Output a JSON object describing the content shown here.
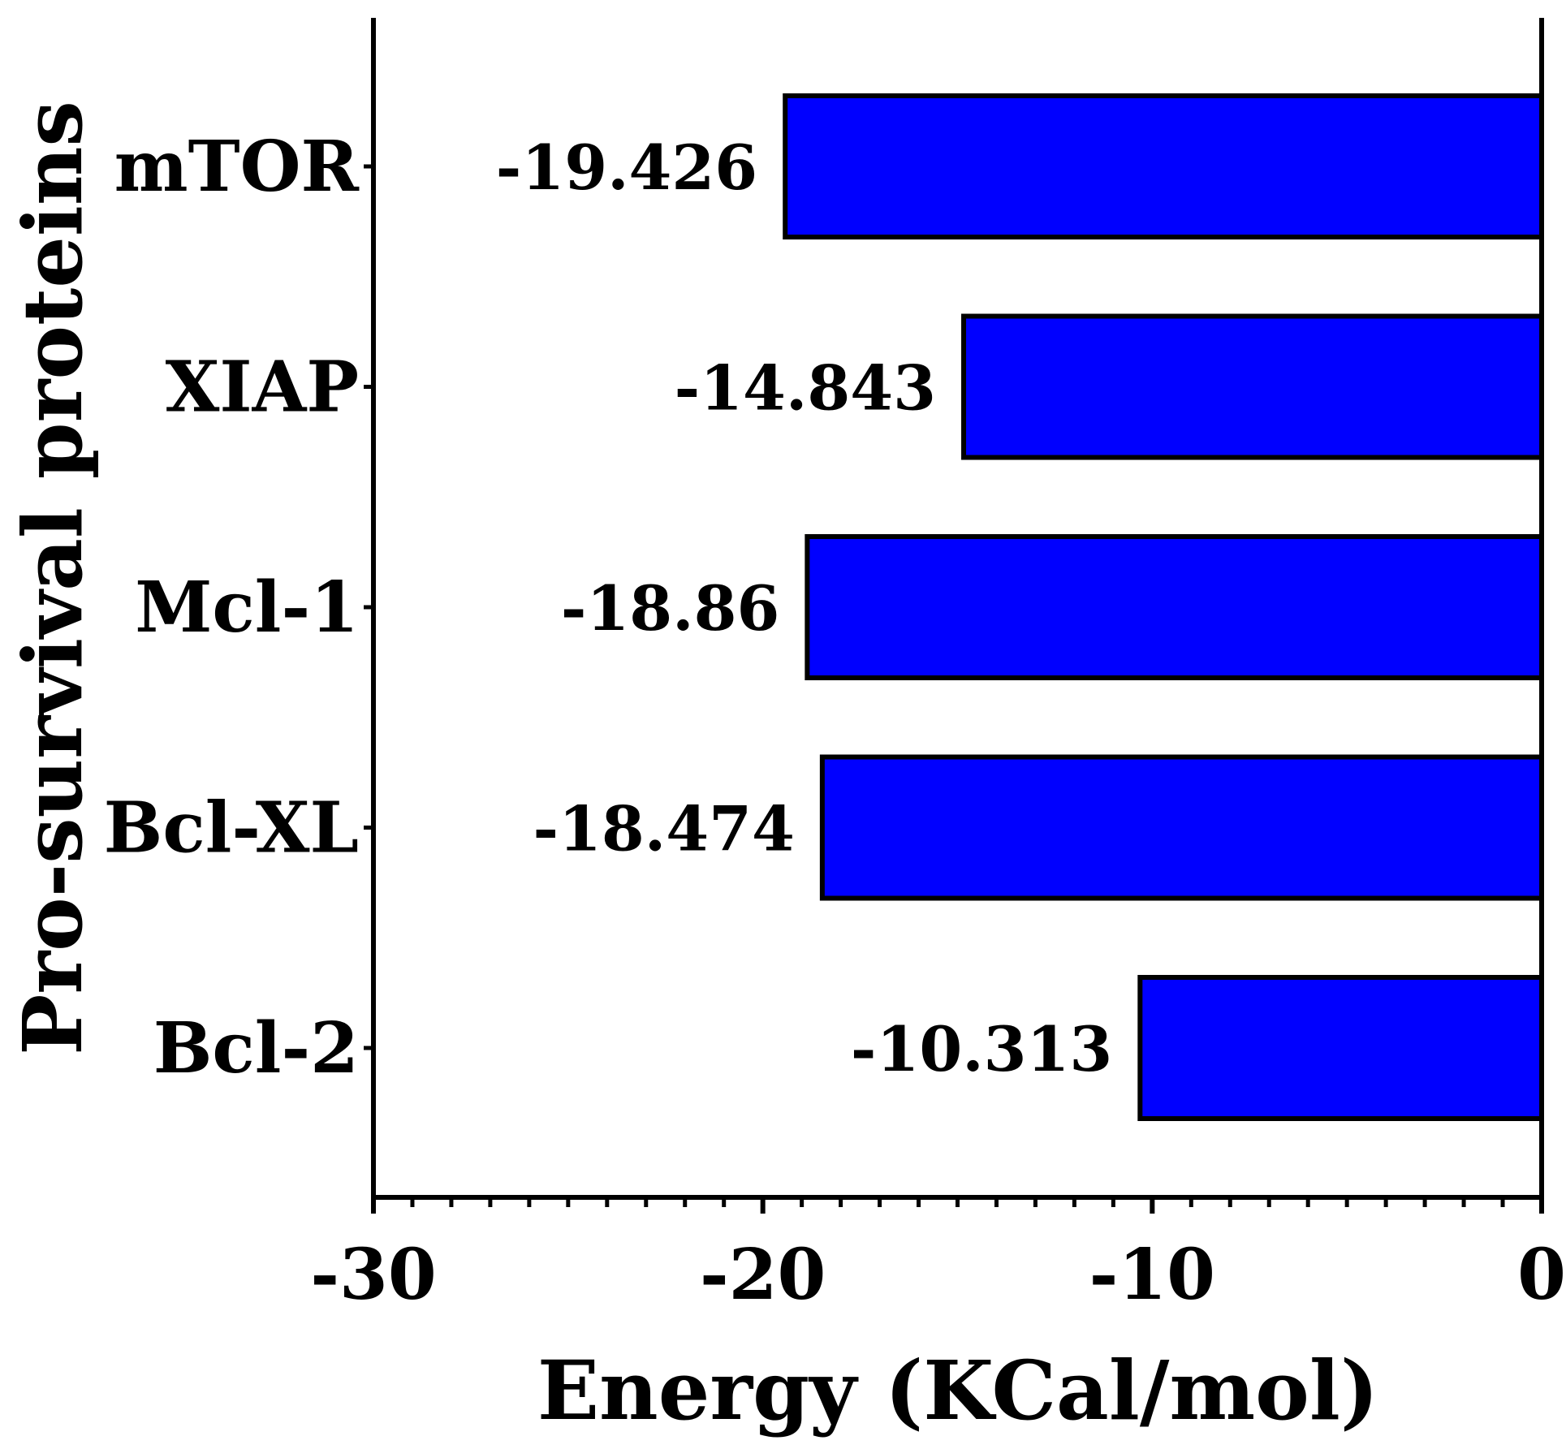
{
  "chart_data": {
    "type": "bar",
    "orientation": "horizontal",
    "categories": [
      "mTOR",
      "XIAP",
      "Mcl-1",
      "Bcl-XL",
      "Bcl-2"
    ],
    "values": [
      -19.426,
      -14.843,
      -18.86,
      -18.474,
      -10.313
    ],
    "value_labels": [
      "-19.426",
      "-14.843",
      "-18.86",
      "-18.474",
      "-10.313"
    ],
    "xlabel": "Energy (KCal/mol)",
    "ylabel": "Pro-survival proteins",
    "xlim": [
      -30,
      0
    ],
    "xticks": [
      -30,
      -20,
      -10,
      0
    ],
    "xtick_labels": [
      "-30",
      "-20",
      "-10",
      "0"
    ],
    "minor_tick_step": 1,
    "bar_color": "#0000ff",
    "edge_color": "#000000"
  }
}
